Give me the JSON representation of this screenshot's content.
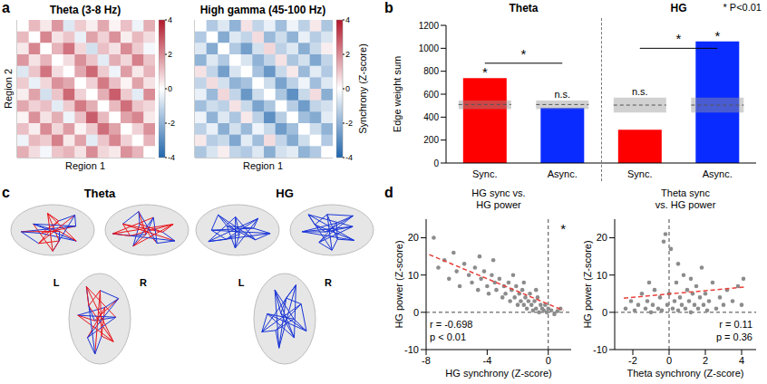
{
  "chart_data": [
    {
      "panel": "a",
      "type": "heatmap",
      "title": "Theta (3-8 Hz)",
      "x_label": "Region 1",
      "y_label": "Region 2",
      "tick_labels": false,
      "cells": [
        [
          0,
          1.2,
          0.4,
          1.8,
          -0.6,
          0.9,
          0.3,
          1.5,
          0.2,
          1.1,
          -0.3,
          1.4
        ],
        [
          1.2,
          0,
          2.1,
          0.5,
          1.0,
          -0.4,
          1.6,
          0.8,
          1.9,
          0.3,
          1.2,
          0.6
        ],
        [
          0.4,
          2.1,
          0,
          1.3,
          2.4,
          0.7,
          -0.8,
          1.1,
          0.5,
          2.0,
          0.9,
          -0.2
        ],
        [
          1.8,
          0.5,
          1.3,
          0,
          0.6,
          1.9,
          1.0,
          -0.5,
          1.4,
          0.7,
          2.2,
          1.0
        ],
        [
          -0.6,
          1.0,
          2.4,
          0.6,
          0,
          1.5,
          2.6,
          0.9,
          -0.3,
          1.7,
          0.4,
          1.3
        ],
        [
          0.9,
          -0.4,
          0.7,
          1.9,
          1.5,
          0,
          0.8,
          2.3,
          1.1,
          0.2,
          1.6,
          0.5
        ],
        [
          0.3,
          1.6,
          -0.8,
          1.0,
          2.6,
          0.8,
          0,
          1.4,
          2.8,
          0.9,
          -0.5,
          2.0
        ],
        [
          1.5,
          0.8,
          1.1,
          -0.5,
          0.9,
          2.3,
          1.4,
          0,
          1.2,
          2.5,
          1.0,
          0.7
        ],
        [
          0.2,
          1.9,
          0.5,
          1.4,
          -0.3,
          1.1,
          2.8,
          1.2,
          0,
          1.6,
          2.1,
          0.4
        ],
        [
          1.1,
          0.3,
          2.0,
          0.7,
          1.7,
          0.2,
          0.9,
          2.5,
          1.6,
          0,
          0.8,
          1.9
        ],
        [
          -0.3,
          1.2,
          0.9,
          2.2,
          0.4,
          1.6,
          -0.5,
          1.0,
          2.1,
          0.8,
          0,
          1.3
        ],
        [
          1.4,
          0.6,
          -0.2,
          1.0,
          1.3,
          0.5,
          2.0,
          0.7,
          0.4,
          1.9,
          1.3,
          0
        ]
      ],
      "colorbar": {
        "range": [
          -4,
          4
        ],
        "ticks": [
          4,
          2,
          0,
          -2,
          -4
        ]
      }
    },
    {
      "panel": "a",
      "type": "heatmap",
      "title": "High gamma (45-100 Hz)",
      "x_label": "Region 1",
      "tick_labels": false,
      "cells": [
        [
          0,
          -1.4,
          -0.6,
          -2.0,
          0.5,
          -1.1,
          -0.4,
          -1.7,
          -0.3,
          -1.2,
          0.4,
          -1.5
        ],
        [
          -1.4,
          0,
          -2.2,
          -0.6,
          -1.1,
          0.6,
          -1.8,
          -0.9,
          -2.0,
          -0.4,
          -1.3,
          -0.7
        ],
        [
          -0.6,
          -2.2,
          0,
          -1.4,
          -2.5,
          -0.8,
          0.7,
          -1.2,
          -0.6,
          -2.1,
          -1.0,
          0.3
        ],
        [
          -2.0,
          -0.6,
          -1.4,
          0,
          -0.7,
          -2.0,
          -1.1,
          0.5,
          -1.5,
          -0.8,
          -2.3,
          -1.1
        ],
        [
          0.5,
          -1.1,
          -2.5,
          -0.7,
          0,
          -1.6,
          -2.7,
          -1.0,
          0.4,
          -1.8,
          -0.5,
          -1.4
        ],
        [
          -1.1,
          0.6,
          -0.8,
          -2.0,
          -1.6,
          0,
          -0.9,
          -2.4,
          -1.2,
          -0.3,
          -1.7,
          -0.6
        ],
        [
          -0.4,
          -1.8,
          0.7,
          -1.1,
          -2.7,
          -0.9,
          0,
          -1.5,
          -2.9,
          -1.0,
          0.6,
          -2.1
        ],
        [
          -1.7,
          -0.9,
          -1.2,
          0.5,
          -1.0,
          -2.4,
          -1.5,
          0,
          -1.3,
          -2.6,
          -1.1,
          -0.8
        ],
        [
          -0.3,
          -2.0,
          -0.6,
          -1.5,
          0.4,
          -1.2,
          -2.9,
          -1.3,
          0,
          -1.7,
          -2.2,
          -0.5
        ],
        [
          -1.2,
          -0.4,
          -2.1,
          -0.8,
          -1.8,
          -0.3,
          -1.0,
          -2.6,
          -1.7,
          0,
          -0.9,
          -2.0
        ],
        [
          0.4,
          -1.3,
          -1.0,
          -2.3,
          -0.5,
          -1.7,
          0.6,
          -1.1,
          -2.2,
          -0.9,
          0,
          -1.4
        ],
        [
          -1.5,
          -0.7,
          0.3,
          -1.1,
          -1.4,
          -0.6,
          -2.1,
          -0.8,
          -0.5,
          -2.0,
          -1.4,
          0
        ]
      ],
      "colorbar": {
        "range": [
          -4,
          4
        ],
        "ticks": [
          4,
          2,
          0,
          -2,
          -4
        ],
        "label": "Synchrony (Z-score)"
      }
    },
    {
      "panel": "b",
      "type": "bar",
      "y_label": "Edge weight sum",
      "group_labels": [
        "Theta",
        "HG"
      ],
      "categories": [
        "Sync.",
        "Async.",
        "Sync.",
        "Async."
      ],
      "values": [
        740,
        480,
        290,
        1060
      ],
      "colors": [
        "#ff0000",
        "#0a2bff",
        "#ff0000",
        "#0a2bff"
      ],
      "null_mean": [
        510,
        510,
        505,
        505
      ],
      "null_range": [
        [
          470,
          545
        ],
        [
          470,
          545
        ],
        [
          440,
          570
        ],
        [
          440,
          570
        ]
      ],
      "bar_annotations": [
        "*",
        "n.s.",
        "n.s.",
        "*"
      ],
      "comparisons": [
        {
          "from": 0,
          "to": 1,
          "y": 870,
          "label": "*"
        },
        {
          "from": 2,
          "to": 3,
          "y": 1000,
          "label": "*"
        }
      ],
      "annotation": "* P<0.01",
      "ylim": [
        0,
        1200
      ],
      "yticks": [
        0,
        200,
        400,
        600,
        800,
        1000,
        1200
      ]
    },
    {
      "panel": "c",
      "type": "network_diagram",
      "title": "Theta",
      "hemispheres": [
        "L",
        "R"
      ],
      "colors": [
        "#e8141b",
        "#1a35d6"
      ]
    },
    {
      "panel": "c",
      "type": "network_diagram",
      "title": "HG",
      "hemispheres": [
        "L",
        "R"
      ],
      "colors": [
        "#1a35d6"
      ]
    },
    {
      "panel": "d",
      "type": "scatter",
      "title": "HG sync vs. HG power",
      "x_label": "HG synchrony (Z-score)",
      "y_label": "HG power (Z-score)",
      "xlim": [
        -8,
        1.5
      ],
      "xticks": [
        -8,
        -4,
        0
      ],
      "ylim": [
        -10,
        25
      ],
      "yticks": [
        -10,
        0,
        10,
        20
      ],
      "color": "#8c8c8c",
      "x": [
        -7.5,
        -7.2,
        -6.8,
        -6.5,
        -6.2,
        -6.0,
        -5.8,
        -5.5,
        -5.2,
        -5.0,
        -4.8,
        -4.6,
        -4.4,
        -4.2,
        -4.0,
        -3.9,
        -3.7,
        -3.5,
        -3.4,
        -3.2,
        -3.0,
        -2.9,
        -2.8,
        -2.6,
        -2.5,
        -2.4,
        -2.2,
        -2.1,
        -2.0,
        -1.9,
        -1.8,
        -1.7,
        -1.6,
        -1.5,
        -1.4,
        -1.3,
        -1.2,
        -1.1,
        -1.0,
        -0.9,
        -0.8,
        -0.7,
        -0.6,
        -0.5,
        -0.4,
        -0.3,
        -0.2,
        -0.1,
        0.0,
        0.2,
        0.4,
        0.6,
        0.8,
        -3.6,
        -4.5,
        -2.3,
        -1.6,
        -0.8
      ],
      "y": [
        20,
        12,
        14,
        9,
        16,
        11,
        7,
        13,
        10,
        8,
        12,
        6,
        9,
        11,
        7,
        5,
        10,
        8,
        6,
        9,
        4,
        7,
        5,
        8,
        3,
        6,
        4,
        7,
        2,
        5,
        3,
        6,
        2,
        4,
        1,
        3,
        5,
        2,
        0.5,
        3,
        1,
        4,
        0,
        2,
        1,
        0.5,
        2,
        0,
        1,
        0.5,
        -0.5,
        0.3,
        1,
        14,
        15,
        10,
        8,
        6
      ],
      "fit": {
        "x": [
          -7.8,
          1
        ],
        "y": [
          15.5,
          0.5
        ],
        "color": "#e8413a",
        "line_style": "dashed"
      },
      "reference_lines": {
        "x": 0,
        "y": 0
      },
      "annotations": [
        "r = -0.698",
        "p < 0.01"
      ],
      "significance": "*"
    },
    {
      "panel": "d",
      "type": "scatter",
      "title": "Theta sync vs. HG power",
      "x_label": "Theta synchrony (Z-score)",
      "y_label": "HG power (Z-score)",
      "xlim": [
        -3,
        4.8
      ],
      "xticks": [
        -2,
        0,
        2,
        4
      ],
      "ylim": [
        -10,
        25
      ],
      "yticks": [
        -10,
        0,
        10,
        20
      ],
      "color": "#8c8c8c",
      "x": [
        -2.4,
        -2.1,
        -1.9,
        -1.7,
        -1.5,
        -1.3,
        -1.2,
        -1.0,
        -0.9,
        -0.8,
        -0.6,
        -0.5,
        -0.4,
        -0.3,
        -0.2,
        -0.1,
        0.0,
        0.1,
        0.2,
        0.3,
        0.4,
        0.5,
        0.6,
        0.7,
        0.8,
        0.9,
        1.0,
        1.1,
        1.2,
        1.3,
        1.4,
        1.5,
        1.6,
        1.7,
        1.8,
        1.9,
        2.0,
        2.1,
        2.2,
        2.4,
        2.6,
        2.8,
        3.0,
        3.2,
        3.5,
        3.8,
        4.0,
        4.1,
        -1.1,
        0.5,
        1.2
      ],
      "y": [
        1,
        3,
        0.5,
        2,
        5,
        1,
        3,
        0,
        2,
        6,
        1,
        4,
        0.5,
        19,
        21,
        2,
        5,
        17,
        1,
        3,
        8,
        0.5,
        4,
        2,
        10,
        1,
        6,
        3,
        0,
        5,
        2,
        7,
        1,
        4,
        12,
        2,
        5,
        0.5,
        3,
        8,
        1,
        4,
        2,
        6,
        3,
        7,
        2,
        9,
        8,
        13,
        9
      ],
      "fit": {
        "x": [
          -2.5,
          4.2
        ],
        "y": [
          3.8,
          6.8
        ],
        "color": "#e8413a",
        "line_style": "dashed"
      },
      "reference_lines": {
        "x": 0,
        "y": 0
      },
      "annotations": [
        "r = 0.11",
        "p = 0.36"
      ]
    }
  ]
}
